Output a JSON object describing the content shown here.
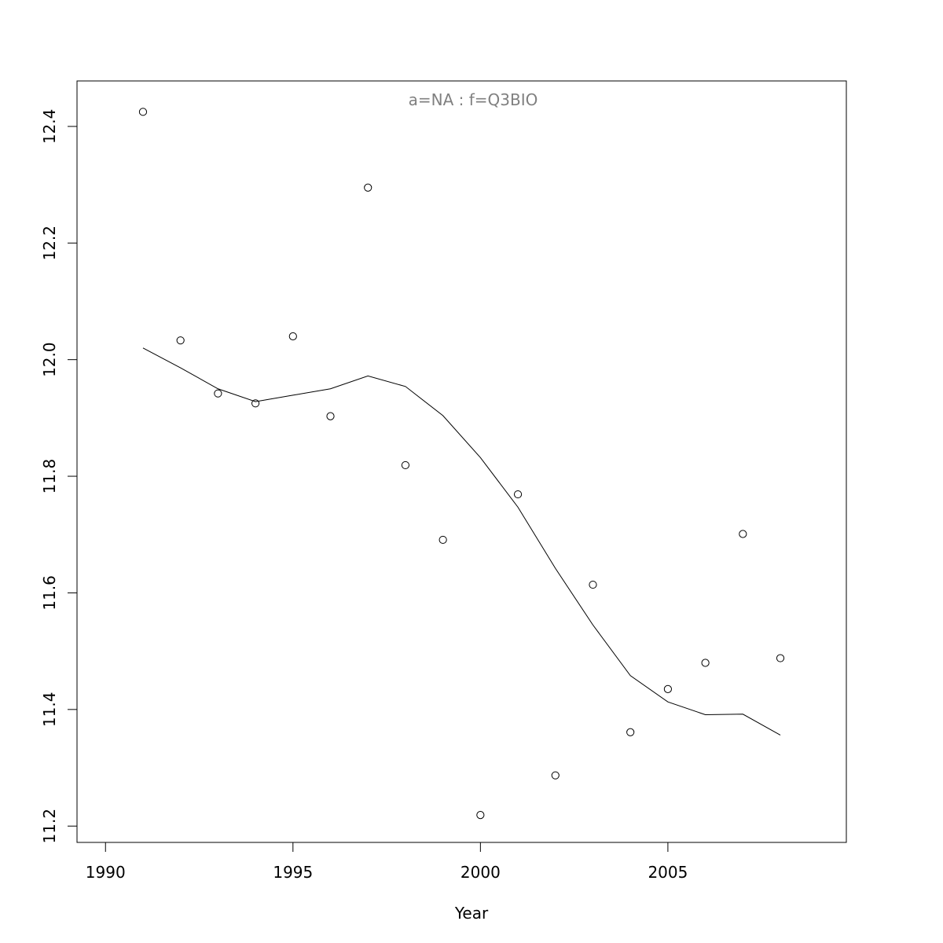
{
  "chart_data": {
    "type": "scatter",
    "title": "a=NA  :  f=Q3BIO",
    "title_color": "#808080",
    "xlabel": "Year",
    "ylabel": "",
    "xlim": [
      1989.24,
      2009.76
    ],
    "ylim": [
      11.172,
      12.478
    ],
    "x_ticks": [
      1990,
      1995,
      2000,
      2005
    ],
    "x_tick_labels": [
      "1990",
      "1995",
      "2000",
      "2005"
    ],
    "y_ticks": [
      11.2,
      11.4,
      11.6,
      11.8,
      12.0,
      12.2,
      12.4
    ],
    "y_tick_labels": [
      "11.2",
      "11.4",
      "11.6",
      "11.8",
      "12.0",
      "12.2",
      "12.4"
    ],
    "grid": false,
    "series": [
      {
        "style": "points",
        "color": "#000000",
        "x": [
          1991,
          1992,
          1993,
          1994,
          1995,
          1996,
          1997,
          1998,
          1999,
          2000,
          2001,
          2002,
          2003,
          2004,
          2005,
          2006,
          2007,
          2008
        ],
        "y": [
          12.425,
          12.033,
          11.942,
          11.925,
          12.04,
          11.903,
          12.295,
          11.819,
          11.691,
          11.219,
          11.769,
          11.287,
          11.614,
          11.361,
          11.435,
          11.48,
          11.701,
          11.488
        ]
      },
      {
        "style": "line",
        "color": "#000000",
        "x": [
          1991,
          1992,
          1993,
          1994,
          1995,
          1996,
          1997,
          1998,
          1999,
          2000,
          2001,
          2002,
          2003,
          2004,
          2005,
          2006,
          2007,
          2008
        ],
        "y": [
          12.02,
          11.986,
          11.95,
          11.928,
          11.939,
          11.95,
          11.972,
          11.954,
          11.904,
          11.832,
          11.747,
          11.642,
          11.545,
          11.458,
          11.413,
          11.391,
          11.392,
          11.356
        ]
      }
    ]
  }
}
